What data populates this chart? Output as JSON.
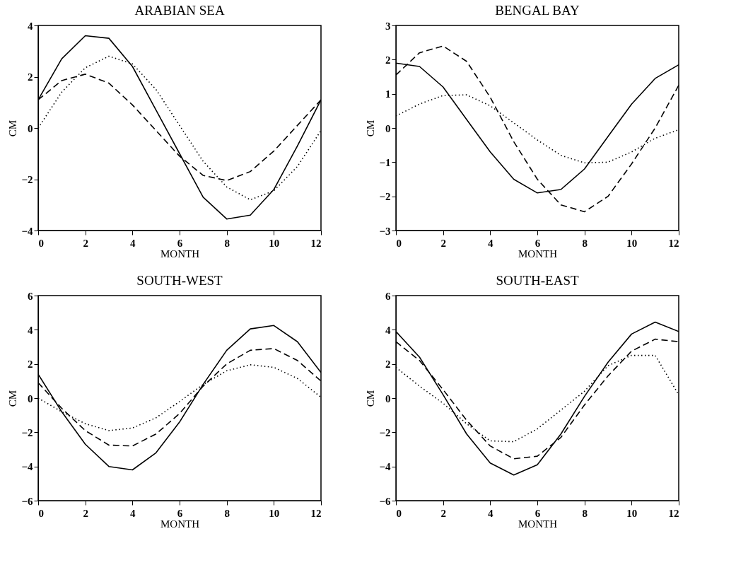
{
  "chart_data": [
    {
      "type": "line",
      "title": "ARABIAN SEA",
      "xlabel": "MONTH",
      "ylabel": "CM",
      "x": [
        0,
        1,
        2,
        3,
        4,
        5,
        6,
        7,
        8,
        9,
        10,
        11,
        12
      ],
      "xlim": [
        0,
        12
      ],
      "xticks": [
        0,
        2,
        4,
        6,
        8,
        10,
        12
      ],
      "ylim": [
        -4,
        4
      ],
      "yticks": [
        -4,
        -2,
        0,
        2,
        4
      ],
      "series": [
        {
          "color": "#000000",
          "line_style": "solid",
          "values": [
            1.1,
            2.7,
            3.6,
            3.5,
            2.4,
            0.7,
            -1.0,
            -2.7,
            -3.55,
            -3.4,
            -2.4,
            -0.7,
            1.1
          ]
        },
        {
          "color": "#000000",
          "line_style": "dashed",
          "values": [
            1.1,
            1.85,
            2.1,
            1.75,
            0.9,
            -0.1,
            -1.1,
            -1.85,
            -2.05,
            -1.7,
            -0.9,
            0.1,
            1.1
          ]
        },
        {
          "color": "#000000",
          "line_style": "dotted",
          "values": [
            0.0,
            1.4,
            2.35,
            2.8,
            2.5,
            1.5,
            0.1,
            -1.3,
            -2.3,
            -2.8,
            -2.45,
            -1.5,
            -0.1
          ]
        }
      ]
    },
    {
      "type": "line",
      "title": "BENGAL BAY",
      "xlabel": "MONTH",
      "ylabel": "CM",
      "x": [
        0,
        1,
        2,
        3,
        4,
        5,
        6,
        7,
        8,
        9,
        10,
        11,
        12
      ],
      "xlim": [
        0,
        12
      ],
      "xticks": [
        0,
        2,
        4,
        6,
        8,
        10,
        12
      ],
      "ylim": [
        -3,
        3
      ],
      "yticks": [
        -3,
        -2,
        -1,
        0,
        1,
        2,
        3
      ],
      "series": [
        {
          "color": "#000000",
          "line_style": "solid",
          "values": [
            1.9,
            1.8,
            1.2,
            0.25,
            -0.7,
            -1.5,
            -1.9,
            -1.8,
            -1.2,
            -0.25,
            0.7,
            1.45,
            1.85
          ]
        },
        {
          "color": "#000000",
          "line_style": "dashed",
          "values": [
            1.55,
            2.2,
            2.4,
            1.95,
            0.9,
            -0.4,
            -1.5,
            -2.25,
            -2.45,
            -2.0,
            -1.05,
            0.0,
            1.25
          ]
        },
        {
          "color": "#000000",
          "line_style": "dotted",
          "values": [
            0.35,
            0.7,
            0.95,
            0.97,
            0.65,
            0.15,
            -0.35,
            -0.8,
            -1.02,
            -1.0,
            -0.7,
            -0.3,
            -0.05
          ]
        }
      ]
    },
    {
      "type": "line",
      "title": "SOUTH-WEST",
      "xlabel": "MONTH",
      "ylabel": "CM",
      "x": [
        0,
        1,
        2,
        3,
        4,
        5,
        6,
        7,
        8,
        9,
        10,
        11,
        12
      ],
      "xlim": [
        0,
        12
      ],
      "xticks": [
        0,
        2,
        4,
        6,
        8,
        10,
        12
      ],
      "ylim": [
        -6,
        6
      ],
      "yticks": [
        -6,
        -4,
        -2,
        0,
        2,
        4,
        6
      ],
      "series": [
        {
          "color": "#000000",
          "line_style": "solid",
          "values": [
            1.4,
            -0.8,
            -2.7,
            -4.0,
            -4.2,
            -3.2,
            -1.4,
            0.8,
            2.8,
            4.05,
            4.25,
            3.3,
            1.5
          ]
        },
        {
          "color": "#000000",
          "line_style": "dashed",
          "values": [
            0.9,
            -0.6,
            -1.9,
            -2.75,
            -2.8,
            -2.1,
            -0.9,
            0.7,
            2.0,
            2.8,
            2.9,
            2.2,
            1.0
          ]
        },
        {
          "color": "#000000",
          "line_style": "dotted",
          "values": [
            0.0,
            -0.8,
            -1.5,
            -1.9,
            -1.75,
            -1.15,
            -0.2,
            0.8,
            1.6,
            1.95,
            1.8,
            1.15,
            0.05
          ]
        }
      ]
    },
    {
      "type": "line",
      "title": "SOUTH-EAST",
      "xlabel": "MONTH",
      "ylabel": "CM",
      "x": [
        0,
        1,
        2,
        3,
        4,
        5,
        6,
        7,
        8,
        9,
        10,
        11,
        12
      ],
      "xlim": [
        0,
        12
      ],
      "xticks": [
        0,
        2,
        4,
        6,
        8,
        10,
        12
      ],
      "ylim": [
        -6,
        6
      ],
      "yticks": [
        -6,
        -4,
        -2,
        0,
        2,
        4,
        6
      ],
      "series": [
        {
          "color": "#000000",
          "line_style": "solid",
          "values": [
            3.9,
            2.4,
            0.2,
            -2.1,
            -3.8,
            -4.5,
            -3.9,
            -2.1,
            0.1,
            2.1,
            3.75,
            4.45,
            3.9
          ]
        },
        {
          "color": "#000000",
          "line_style": "dashed",
          "values": [
            3.3,
            2.2,
            0.5,
            -1.3,
            -2.8,
            -3.55,
            -3.4,
            -2.3,
            -0.4,
            1.3,
            2.75,
            3.45,
            3.3
          ]
        },
        {
          "color": "#000000",
          "line_style": "dotted",
          "values": [
            1.8,
            0.7,
            -0.3,
            -1.5,
            -2.5,
            -2.55,
            -1.8,
            -0.7,
            0.4,
            1.9,
            2.5,
            2.5,
            0.2
          ]
        }
      ]
    }
  ]
}
